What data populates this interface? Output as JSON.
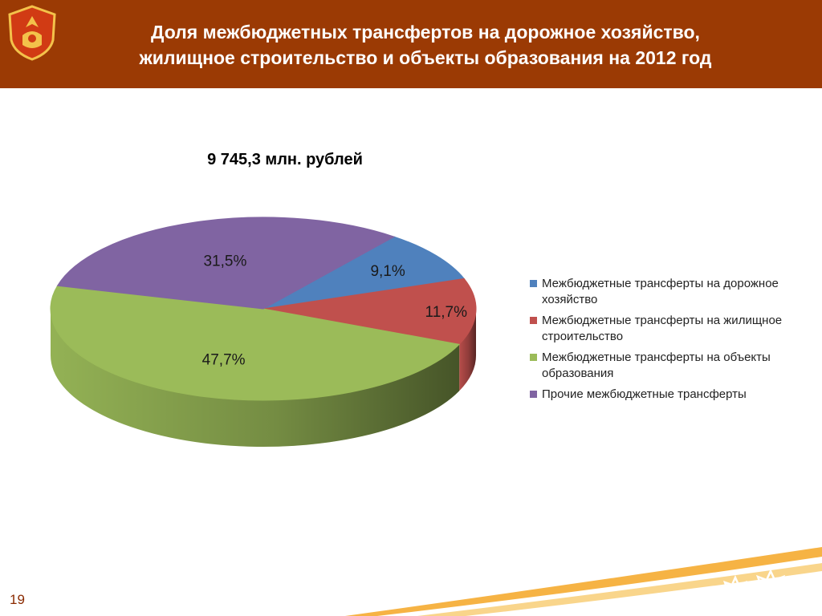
{
  "header": {
    "title": "Доля межбюджетных трансфертов на дорожное хозяйство,\nжилищное строительство и объекты образования на 2012 год"
  },
  "colors": {
    "header_bg": "#9b3a04",
    "accent": "#f5a623"
  },
  "chart_data": {
    "type": "pie",
    "subtitle": "9 745,3 млн. рублей",
    "legend_position": "right",
    "slices": [
      {
        "label": "Межбюджетные трансферты на дорожное хозяйство",
        "value": 9.1,
        "value_label": "9,1%",
        "color": "#4f81bd"
      },
      {
        "label": "Межбюджетные трансферты на жилищное строительство",
        "value": 11.7,
        "value_label": "11,7%",
        "color": "#c0504d"
      },
      {
        "label": "Межбюджетные трансферты на объекты образования",
        "value": 47.7,
        "value_label": "47,7%",
        "color": "#9bbb59"
      },
      {
        "label": "Прочие межбюджетные трансферты",
        "value": 31.5,
        "value_label": "31,5%",
        "color": "#8064a2"
      }
    ]
  },
  "footer": {
    "page_number": "19"
  }
}
